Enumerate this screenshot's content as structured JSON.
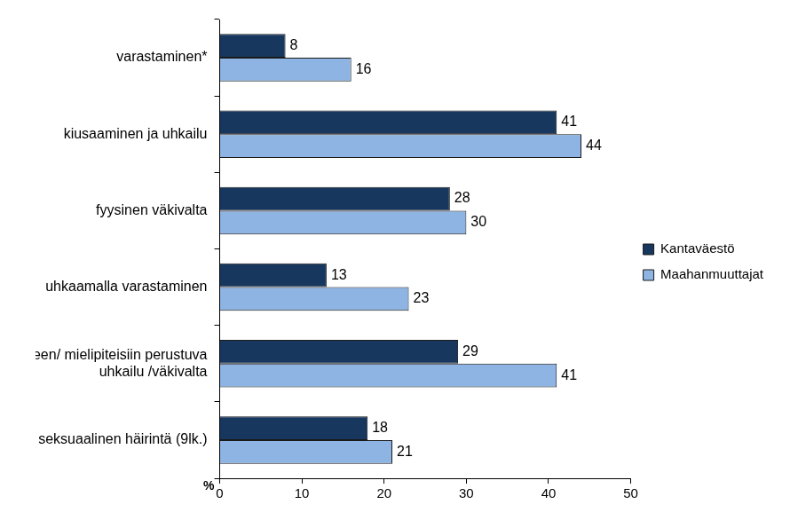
{
  "chart_data": {
    "type": "bar",
    "orientation": "horizontal",
    "categories": [
      "varastaminen*",
      "kiusaaminen ja uhkailu",
      "fyysinen väkivalta",
      "uhkaamalla varastaminen",
      [
        "etnisyyteen/ mielipiteisiin perustuva",
        "uhkailu /väkivalta"
      ],
      "seksuaalinen häirintä (9lk.)"
    ],
    "series": [
      {
        "name": "Kantaväestö",
        "color": "#17375e",
        "values": [
          8,
          41,
          28,
          13,
          29,
          18
        ]
      },
      {
        "name": "Maahanmuuttajat",
        "color": "#8eb4e3",
        "values": [
          16,
          44,
          30,
          23,
          41,
          21
        ]
      }
    ],
    "xlabel": "%",
    "xlim": [
      0,
      50
    ],
    "xticks": [
      0,
      10,
      20,
      30,
      40,
      50
    ],
    "grid": false,
    "legend": "right",
    "data_labels": true
  }
}
